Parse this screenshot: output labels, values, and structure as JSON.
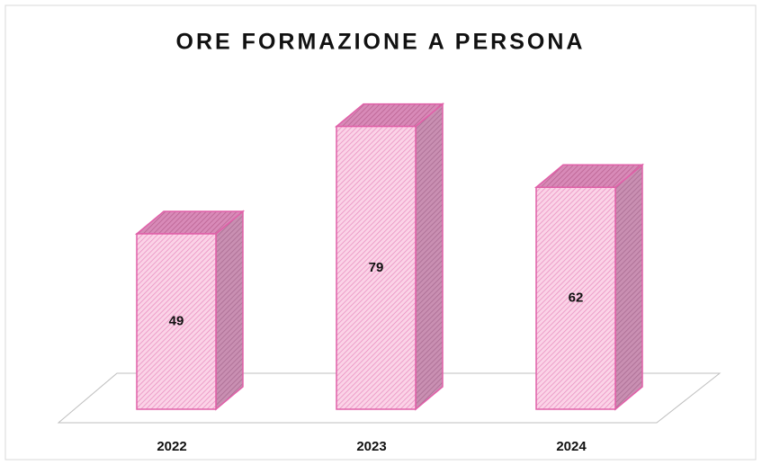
{
  "chart_data": {
    "type": "bar3d",
    "title": "ORE FORMAZIONE A PERSONA",
    "categories": [
      "2022",
      "2023",
      "2024"
    ],
    "values": [
      49,
      79,
      62
    ],
    "color": "#f7b8d8"
  }
}
